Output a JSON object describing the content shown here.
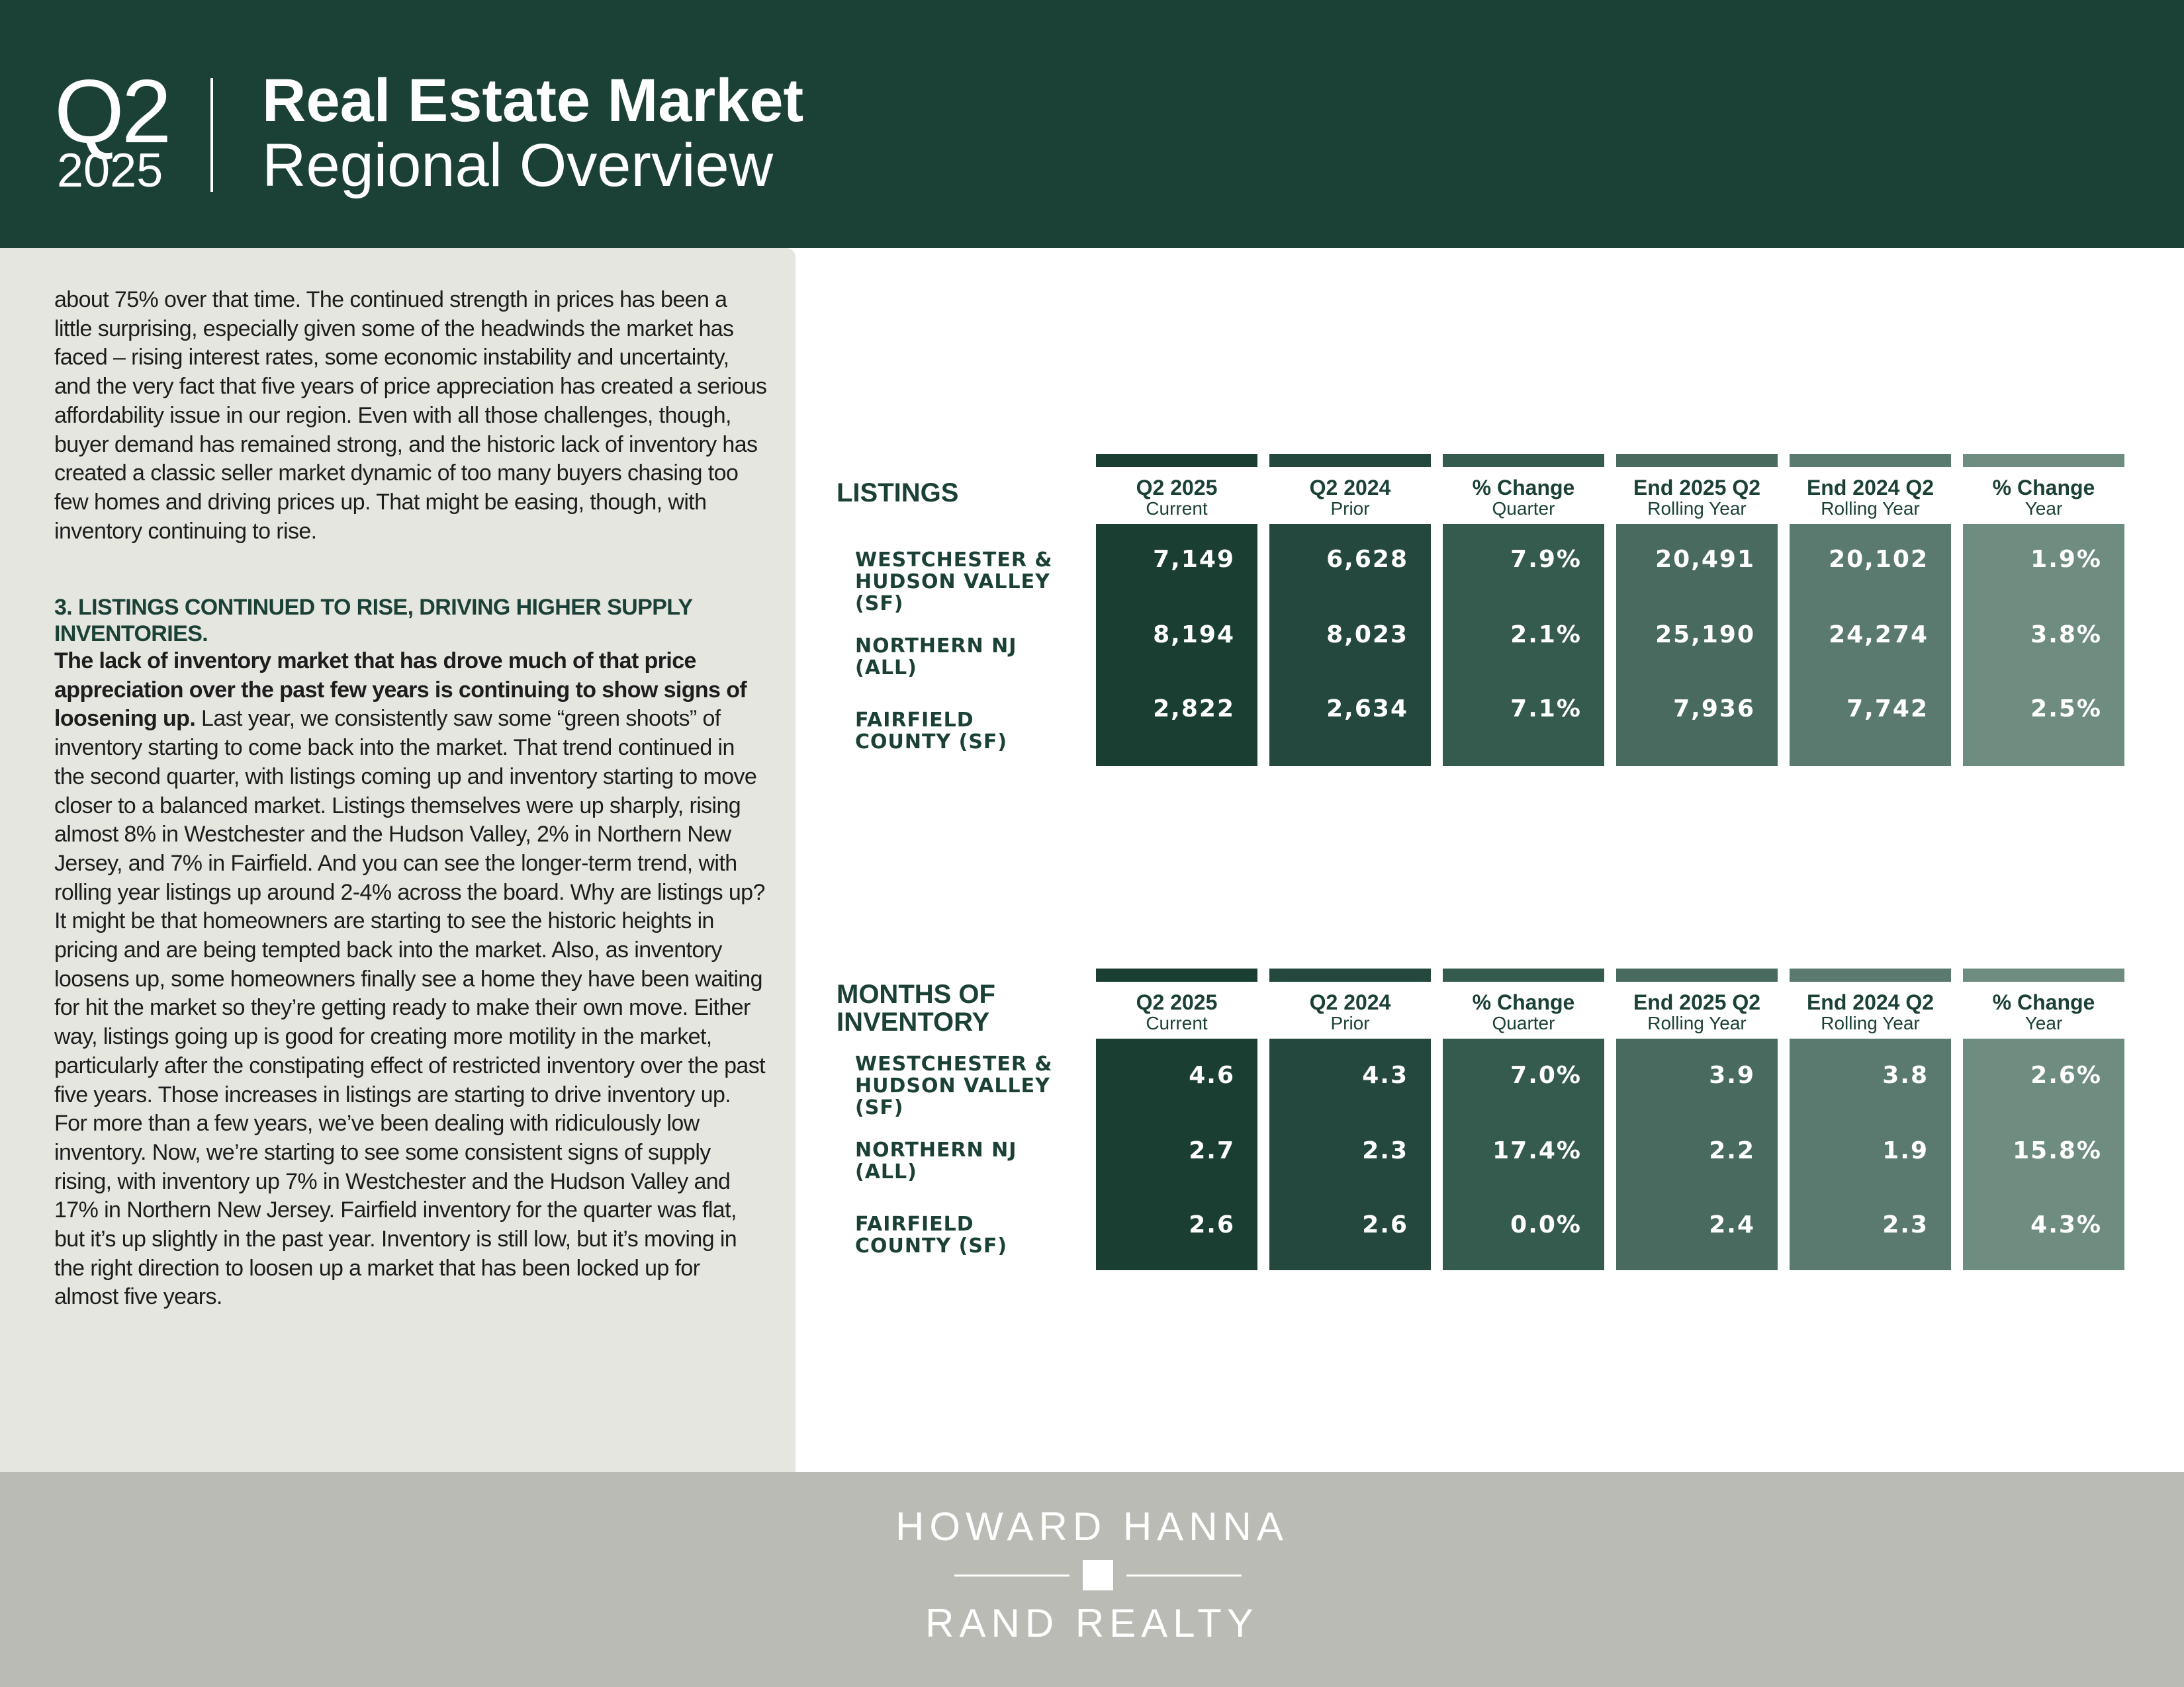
{
  "header": {
    "quarter": "Q2",
    "year": "2025",
    "title": "Real Estate Market",
    "subtitle": "Regional Overview"
  },
  "text": {
    "para1": "about 75% over that time. The continued strength in prices has been a little surprising, especially given some of the headwinds the market has faced – rising interest rates, some economic instability and uncertainty, and the very fact that five years of price appreciation has created a serious affordability issue in our region.  Even with all those challenges, though, buyer demand has remained strong, and the historic lack of inventory has created a classic seller market dynamic of too many buyers chasing too few homes and driving prices up.  That might be easing, though, with inventory continuing to rise.",
    "heading3": "3. LISTINGS CONTINUED TO RISE, DRIVING HIGHER SUPPLY INVENTORIES.",
    "lead3": "The lack of inventory market that has drove much of that price appreciation over the past few years is continuing to show signs of loosening up.",
    "para3": " Last year, we consistently saw some “green shoots” of inventory starting to come back into the market.  That trend continued in the second quarter, with listings coming up and inventory starting to move closer to a balanced market. Listings themselves were up sharply, rising almost 8% in Westchester and the Hudson Valley, 2% in Northern New Jersey, and 7% in Fairfield. And you can see the longer-term trend, with rolling year listings up around 2-4% across the board.  Why are listings up?  It might be that homeowners are starting to see the historic heights in pricing and are being tempted back into the market.  Also, as inventory loosens up, some homeowners finally see a home they have been waiting for hit the market so they’re getting ready to make their own move.  Either way, listings going up is good for creating more motility in the market, particularly after the constipating effect of restricted inventory over the past five years. Those increases in listings are starting to drive inventory up.  For more than a few years, we’ve been dealing with ridiculously low inventory. Now, we’re starting to see some consistent signs of supply rising, with inventory up 7% in Westchester and the Hudson Valley and 17% in Northern New Jersey. Fairfield inventory for the quarter was flat, but it’s up slightly in the past year.  Inventory is still low, but it’s moving in the right direction to loosen up a market that has been locked up for almost five years."
  },
  "columns": [
    {
      "title": "Q2 2025",
      "sub": "Current",
      "color": "#1b3e33"
    },
    {
      "title": "Q2 2024",
      "sub": "Prior",
      "color": "#24483d"
    },
    {
      "title": "% Change",
      "sub": "Quarter",
      "color": "#355a4e"
    },
    {
      "title": "End 2025 Q2",
      "sub": "Rolling Year",
      "color": "#486a5f"
    },
    {
      "title": "End 2024 Q2",
      "sub": "Rolling Year",
      "color": "#5b7a6f"
    },
    {
      "title": "% Change",
      "sub": "Year",
      "color": "#6f8c81"
    }
  ],
  "listings": {
    "title": "LISTINGS",
    "rows": [
      {
        "label": "WESTCHESTER & HUDSON VALLEY (SF)",
        "label_lines": [
          "WESTCHESTER &",
          "HUDSON VALLEY",
          "(SF)"
        ],
        "values": [
          "7,149",
          "6,628",
          "7.9%",
          "20,491",
          "20,102",
          "1.9%"
        ]
      },
      {
        "label": "NORTHERN NJ (ALL)",
        "label_lines": [
          "NORTHERN NJ",
          "(ALL)"
        ],
        "values": [
          "8,194",
          "8,023",
          "2.1%",
          "25,190",
          "24,274",
          "3.8%"
        ]
      },
      {
        "label": "FAIRFIELD COUNTY (SF)",
        "label_lines": [
          "FAIRFIELD",
          "COUNTY (SF)"
        ],
        "values": [
          "2,822",
          "2,634",
          "7.1%",
          "7,936",
          "7,742",
          "2.5%"
        ]
      }
    ]
  },
  "inventory": {
    "title_lines": [
      "MONTHS OF",
      "INVENTORY"
    ],
    "rows": [
      {
        "label": "WESTCHESTER & HUDSON VALLEY (SF)",
        "label_lines": [
          "WESTCHESTER &",
          "HUDSON VALLEY",
          "(SF)"
        ],
        "values": [
          "4.6",
          "4.3",
          "7.0%",
          "3.9",
          "3.8",
          "2.6%"
        ]
      },
      {
        "label": "NORTHERN NJ (ALL)",
        "label_lines": [
          "NORTHERN NJ",
          "(ALL)"
        ],
        "values": [
          "2.7",
          "2.3",
          "17.4%",
          "2.2",
          "1.9",
          "15.8%"
        ]
      },
      {
        "label": "FAIRFIELD COUNTY (SF)",
        "label_lines": [
          "FAIRFIELD",
          "COUNTY (SF)"
        ],
        "values": [
          "2.6",
          "2.6",
          "0.0%",
          "2.4",
          "2.3",
          "4.3%"
        ]
      }
    ]
  },
  "footer": {
    "brand_top": "HOWARD HANNA",
    "brand_bottom": "RAND REALTY"
  }
}
